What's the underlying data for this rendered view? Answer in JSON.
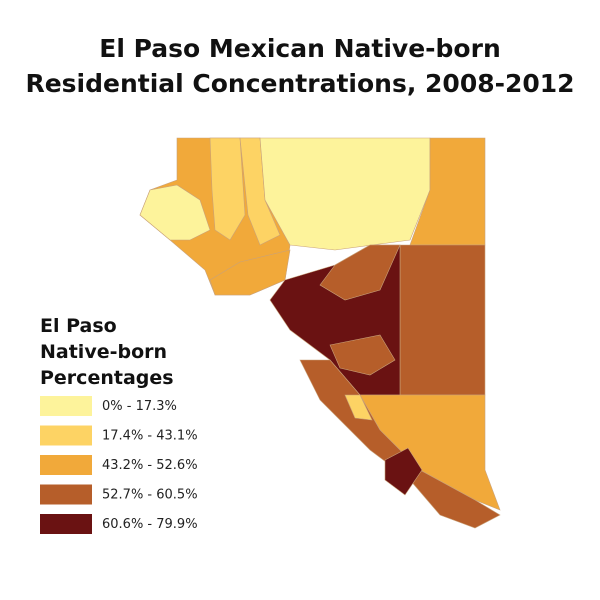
{
  "title": [
    "El Paso Mexican Native-born",
    "Residential Concentrations, 2008-2012"
  ],
  "legend": {
    "title": [
      "El Paso",
      "Native-born",
      "Percentages"
    ],
    "items": [
      {
        "label": "0% - 17.3%",
        "color": "#fdf39b"
      },
      {
        "label": "17.4% - 43.1%",
        "color": "#fdd364"
      },
      {
        "label": "43.2% - 52.6%",
        "color": "#f1a93a"
      },
      {
        "label": "52.7% - 60.5%",
        "color": "#b65e2a"
      },
      {
        "label": "60.6% - 79.9%",
        "color": "#6a1212"
      }
    ]
  }
}
